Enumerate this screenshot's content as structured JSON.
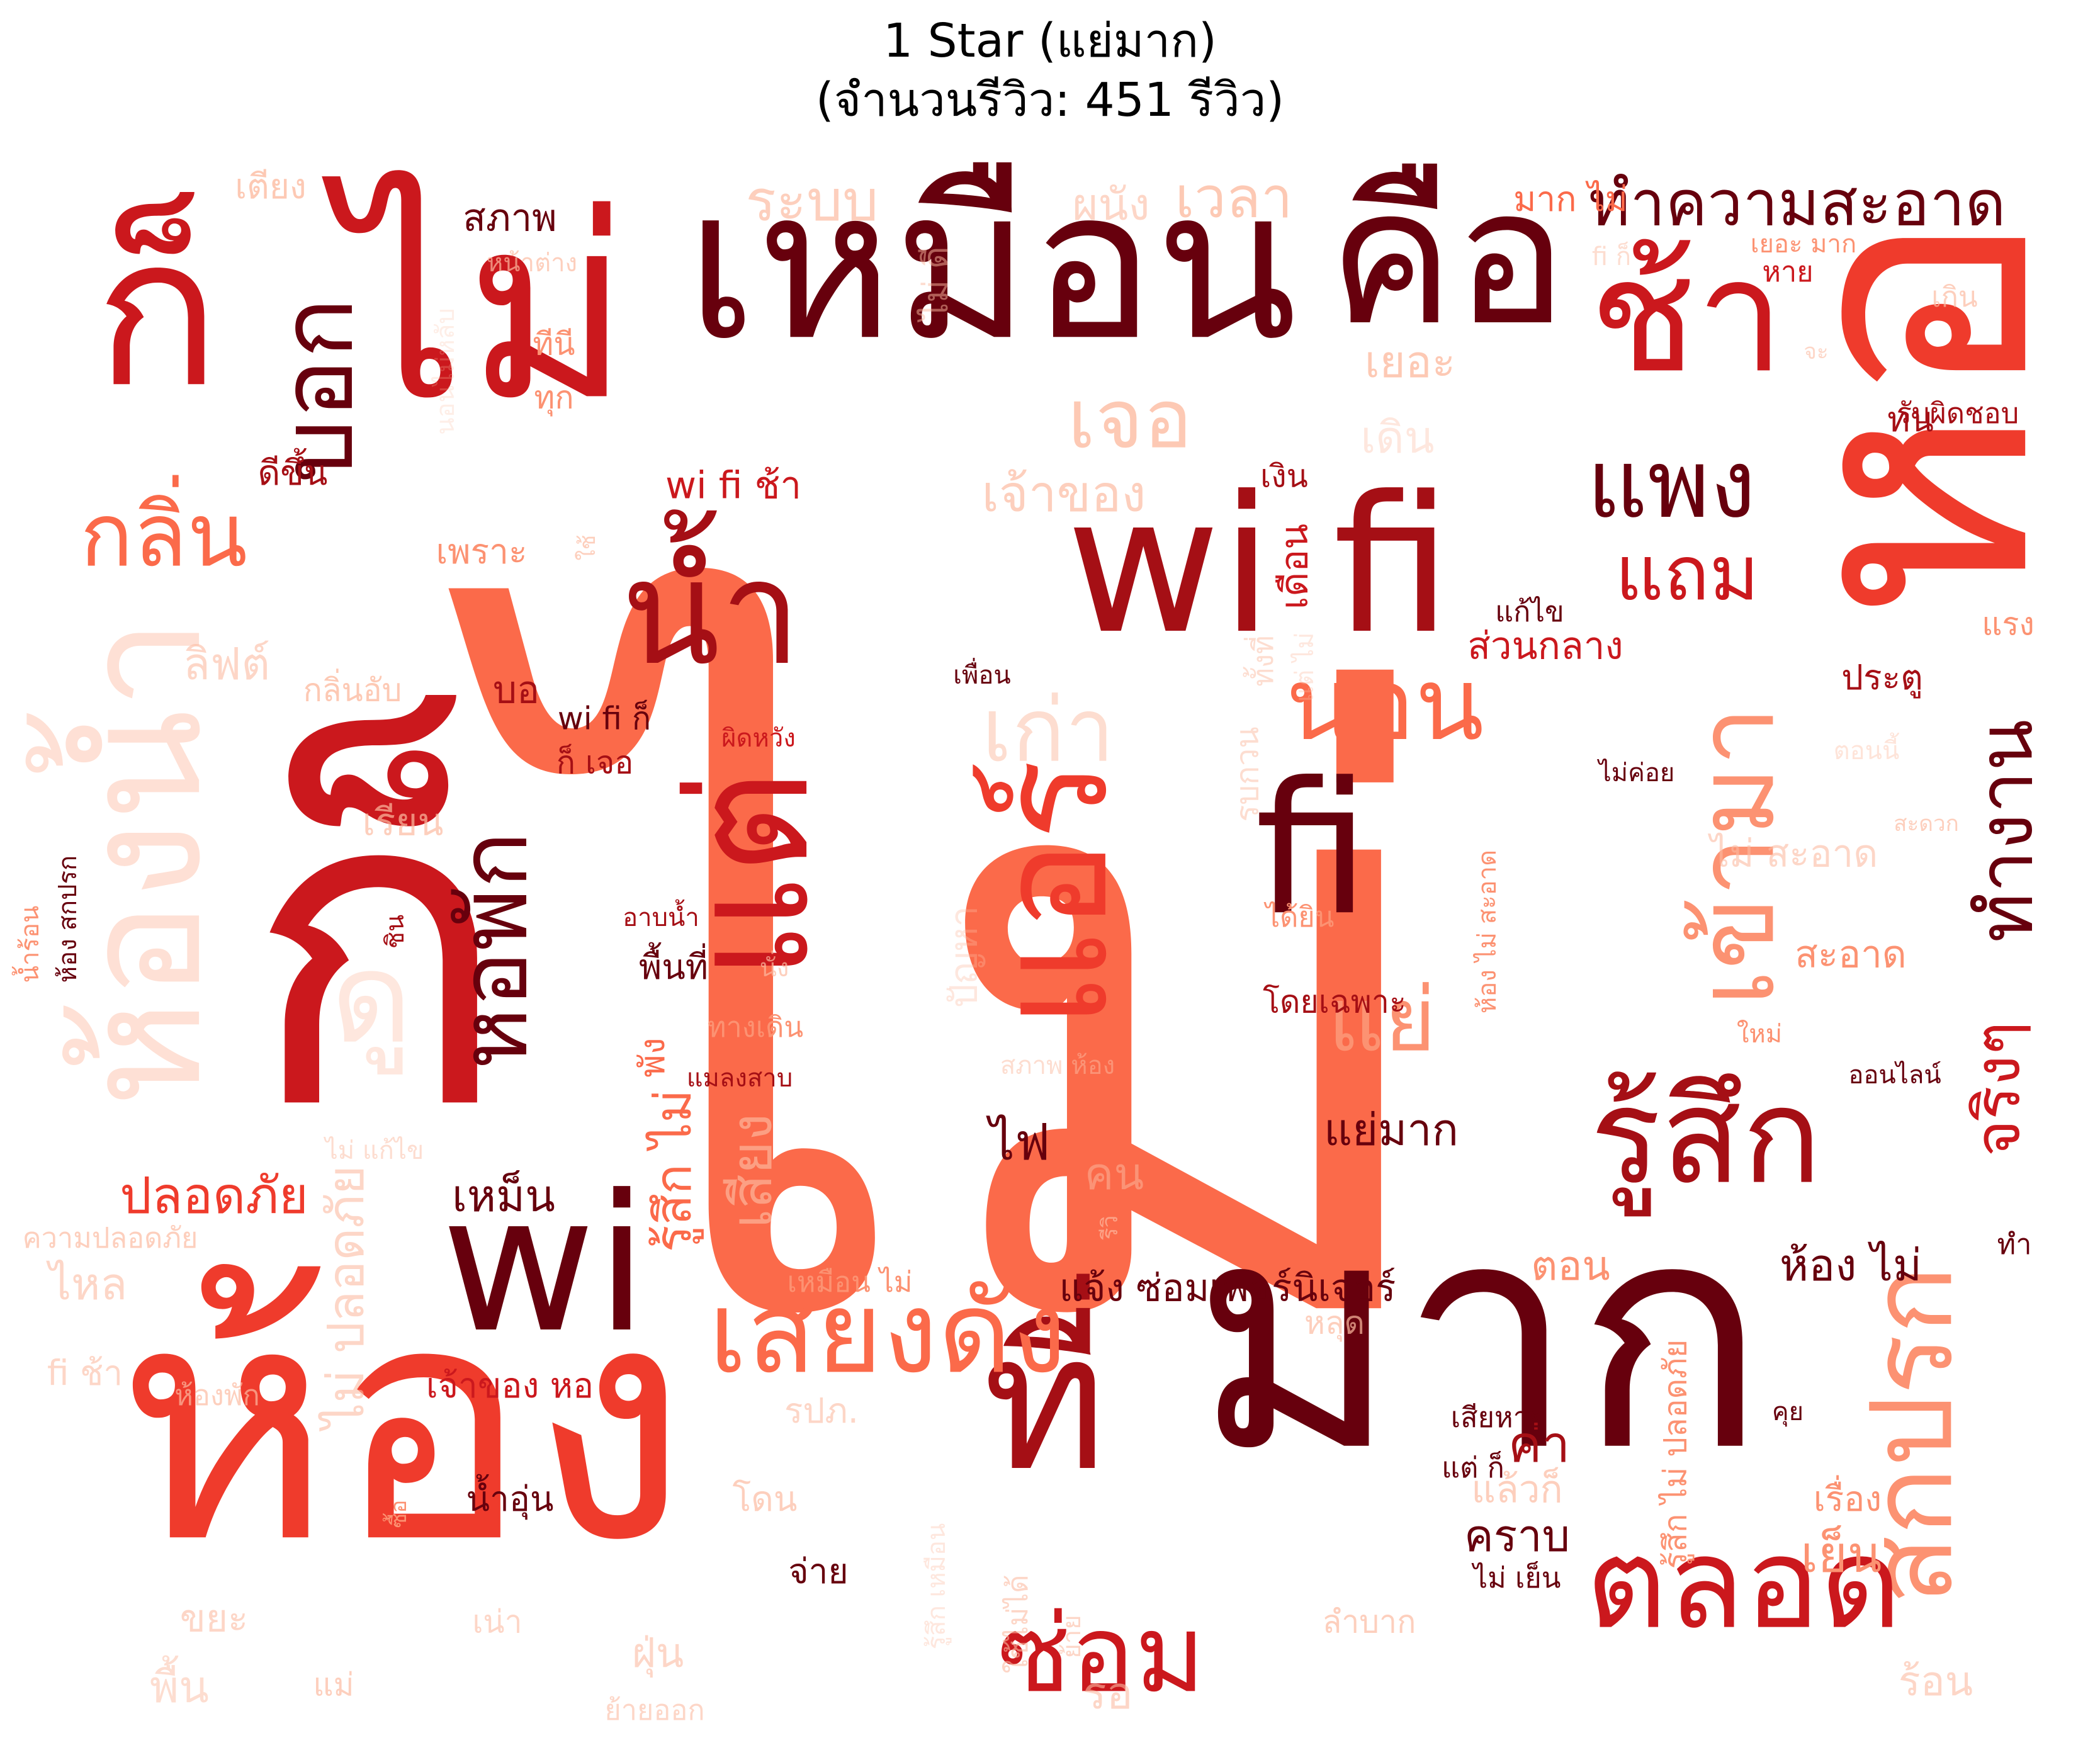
{
  "title": {
    "line1": "1 Star (แย่มาก)",
    "line2": "(จำนวนรีวิว: 451 รีวิว)"
  },
  "words": [
    "ไม่",
    "ห้อง",
    "ก็",
    "มาก",
    "เหมือน",
    "ไม่",
    "หอ",
    "คือ",
    "wi fi",
    "fi",
    "wi",
    "ที่",
    "ช้า",
    "ก็",
    "น้ำ",
    "แอร์",
    "แต่",
    "เสียงดัง",
    "รู้สึก",
    "สกปรก",
    "ตลอด",
    "นอน",
    "แย่",
    "เข้ามา",
    "ห้องน้ำ",
    "เก่า",
    "บอก",
    "ดู",
    "หอพัก",
    "ทำความสะอาด",
    "แพง",
    "แถม",
    "กลิ่น",
    "ทำงาน",
    "จริงๆ",
    "ซ่อม",
    "เจอ",
    "ระบบ",
    "เวลา",
    "ผนัง",
    "สภาพ",
    "มาก ไม่",
    "เตียง",
    "หน้าต่าง",
    "ไม่ ดี",
    "fi ก็",
    "เยอะ มาก",
    "หาย",
    "เกิน",
    "รับผิดชอบ",
    "ทน",
    "จะ",
    "เยอะ",
    "เดิน",
    "ทีนี",
    "ทุก",
    "นอนไม่หลับ",
    "ดีขึ้น",
    "เจ้าของ",
    "เงิน",
    "wi fi ช้า",
    "เพราะ",
    "ใช้",
    "เดือน",
    "ทั้งที่",
    "ลิฟต์",
    "กลิ่นอับ",
    "บอ",
    "เพื่อน",
    "ส่วนกลาง",
    "แก้ไข",
    "แรง",
    "ประตู",
    "ผิดหวัง",
    "wi fi ก็",
    "ก็ เจอ",
    "รบกวน",
    "แต่ ไม่",
    "ไม่ค่อย",
    "ตอนนี้",
    "สะดวก",
    "ไม่ สะอาด",
    "สะอาด",
    "เรียน",
    "ปัญหา",
    "นั่ง",
    "ได้ยิน",
    "ห้อง ไม่ สะอาด",
    "อาบน้ำ",
    "พื้นที่",
    "โดยเฉพาะ",
    "ใหม่",
    "ทางเดิน",
    "น้ำร้อน",
    "ห้อง สกปรก",
    "ชิน",
    "พัง",
    "แมลงสาบ",
    "สภาพ ห้อง",
    "ออนไลน์",
    "ไม่ แก้ไข",
    "ไฟ",
    "แย่มาก",
    "คน",
    "เสียง",
    "รู้สึก ไม่",
    "ปลอดภัย",
    "เหม็น",
    "ความปลอดภัย",
    "ห้อง ไม่",
    "ทำ",
    "ไม่ ปลอดภัย",
    "ไหล",
    "เหมือน ไม่",
    "แจ้ง ซ่อมเฟอร์นิเจอร์",
    "ตอน",
    "รีวิ",
    "หลุด",
    "เจ้าของ หอ",
    "fi ช้า",
    "ห้องพัก",
    "รปภ.",
    "ค่า",
    "รู้สึก ไม่ ปลอดภัย",
    "เสียหาย",
    "คุย",
    "แต่ ก็",
    "แล้วก็",
    "น้ำอุ่น",
    "ซื้อ",
    "คราบ",
    "ไม่ เย็น",
    "เย็น",
    "เรื่อง",
    "จ่าย",
    "โดน",
    "ขยะ",
    "รู้สึก เหมือน",
    "ใช้ไม่ได้",
    "เน่า",
    "ฝุ่น",
    "ลำบาก",
    "ย้าย",
    "พื้น",
    "แม่",
    "ย้ายออก",
    "รอ",
    "ร้อน"
  ],
  "colors": {
    "palette": [
      "#fcbba1",
      "#fc9272",
      "#fb6a4a",
      "#ef3b2c",
      "#cb181d",
      "#a50f15",
      "#67000d"
    ],
    "background": "#ffffff"
  }
}
